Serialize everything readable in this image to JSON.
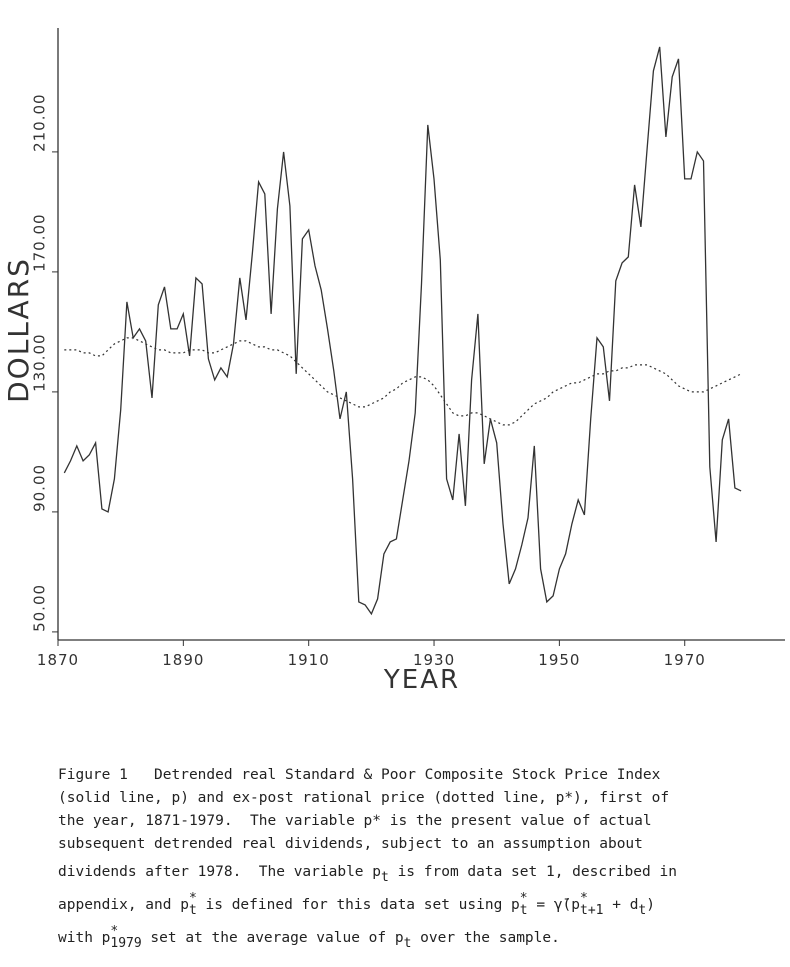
{
  "chart_data": {
    "type": "line",
    "x_label": "YEAR",
    "y_label": "DOLLARS",
    "x": [
      1871,
      1872,
      1873,
      1874,
      1875,
      1876,
      1877,
      1878,
      1879,
      1880,
      1881,
      1882,
      1883,
      1884,
      1885,
      1886,
      1887,
      1888,
      1889,
      1890,
      1891,
      1892,
      1893,
      1894,
      1895,
      1896,
      1897,
      1898,
      1899,
      1900,
      1901,
      1902,
      1903,
      1904,
      1905,
      1906,
      1907,
      1908,
      1909,
      1910,
      1911,
      1912,
      1913,
      1914,
      1915,
      1916,
      1917,
      1918,
      1919,
      1920,
      1921,
      1922,
      1923,
      1924,
      1925,
      1926,
      1927,
      1928,
      1929,
      1930,
      1931,
      1932,
      1933,
      1934,
      1935,
      1936,
      1937,
      1938,
      1939,
      1940,
      1941,
      1942,
      1943,
      1944,
      1945,
      1946,
      1947,
      1948,
      1949,
      1950,
      1951,
      1952,
      1953,
      1954,
      1955,
      1956,
      1957,
      1958,
      1959,
      1960,
      1961,
      1962,
      1963,
      1964,
      1965,
      1966,
      1967,
      1968,
      1969,
      1970,
      1971,
      1972,
      1973,
      1974,
      1975,
      1976,
      1977,
      1978,
      1979
    ],
    "series": [
      {
        "color": "#333333",
        "style": "solid",
        "values": [
          103,
          107,
          112,
          107,
          109,
          113,
          91,
          90,
          101,
          124,
          160,
          148,
          151,
          147,
          128,
          159,
          165,
          151,
          151,
          156,
          142,
          168,
          166,
          141,
          134,
          138,
          135,
          146,
          168,
          154,
          176,
          200,
          196,
          156,
          191,
          210,
          192,
          136,
          181,
          184,
          172,
          164,
          151,
          137,
          121,
          130,
          101,
          60,
          59,
          56,
          61,
          76,
          80,
          81,
          94,
          107,
          123,
          166,
          219,
          201,
          174,
          101,
          94,
          116,
          92,
          134,
          156,
          106,
          121,
          113,
          86,
          66,
          71,
          79,
          88,
          112,
          71,
          60,
          62,
          71,
          76,
          86,
          94,
          89,
          121,
          148,
          145,
          127,
          167,
          173,
          175,
          199,
          185,
          211,
          237,
          245,
          215,
          235,
          241,
          201,
          201,
          210,
          207,
          105,
          80,
          114,
          121,
          98,
          97
        ]
      },
      {
        "color": "#333333",
        "style": "dotted",
        "values": [
          144,
          144,
          144,
          143,
          143,
          142,
          142,
          144,
          146,
          147,
          148,
          148,
          147,
          146,
          145,
          144,
          144,
          143,
          143,
          143,
          144,
          144,
          144,
          143,
          143,
          144,
          145,
          146,
          147,
          147,
          146,
          145,
          145,
          144,
          144,
          143,
          142,
          140,
          138,
          136,
          134,
          132,
          130,
          129,
          128,
          127,
          126,
          125,
          125,
          126,
          127,
          128,
          130,
          131,
          133,
          134,
          135,
          135,
          134,
          132,
          129,
          126,
          123,
          122,
          122,
          123,
          123,
          122,
          121,
          120,
          119,
          119,
          120,
          122,
          124,
          126,
          127,
          128,
          130,
          131,
          132,
          133,
          133,
          134,
          135,
          136,
          136,
          137,
          137,
          138,
          138,
          139,
          139,
          139,
          138,
          137,
          136,
          134,
          132,
          131,
          130,
          130,
          130,
          131,
          132,
          133,
          134,
          135,
          136
        ]
      }
    ],
    "xlim": [
      1870,
      1986
    ],
    "xticks": [
      1870,
      1890,
      1910,
      1930,
      1950,
      1970
    ],
    "ylim": [
      47.3,
      251.3
    ],
    "yticks": [
      {
        "value": 50,
        "label": "50.00"
      },
      {
        "value": 90,
        "label": "90.00"
      },
      {
        "value": 130,
        "label": "130.00"
      },
      {
        "value": 170,
        "label": "170.00"
      },
      {
        "value": 210,
        "label": "210.00"
      }
    ],
    "caption": [
      [
        "Figure 1   Detrended real Standard & Poor Composite Stock Price Index"
      ],
      [
        "(solid line, p) and ex-post rational price (dotted line, p*), first of"
      ],
      [
        "the year, 1871-1979.  The variable p* is the present value of actual"
      ],
      [
        "subsequent detrended real dividends, subject to an assumption about"
      ],
      [
        "dividends after 1978.  The variable p",
        {
          "sub": "t"
        },
        " is from data set 1, described in"
      ],
      [
        "appendix, and p",
        {
          "sup": "*",
          "sub": "t"
        },
        " is defined for this data set using p",
        {
          "sup": "*",
          "sub": "t"
        },
        " = γ̄(p",
        {
          "sup": "*",
          "sub": "t+1"
        },
        " + d",
        {
          "sub": "t"
        },
        ")"
      ],
      [
        "with p",
        {
          "sup": "*",
          "sub": "1979"
        },
        " set at the average value of p",
        {
          "sub": "t"
        },
        " over the sample."
      ]
    ]
  }
}
